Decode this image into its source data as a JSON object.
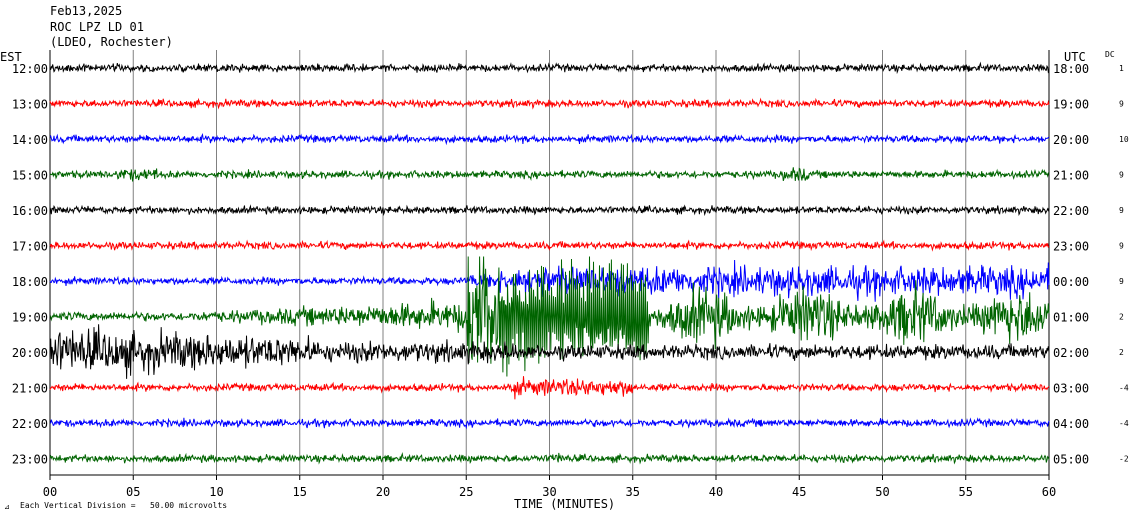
{
  "header": {
    "date": "Feb13,2025",
    "station": "ROC LPZ LD 01",
    "network": "(LDEO, Rochester)"
  },
  "axes": {
    "left_label": "EST",
    "right_label": "UTC",
    "dc_label": "DC",
    "x_label": "TIME (MINUTES)",
    "footer_note": "Each Vertical Division =   50.00 microvolts"
  },
  "colors": {
    "black": "#000000",
    "red": "#ff0000",
    "blue": "#0000ff",
    "green": "#006400",
    "grid": "#808080"
  },
  "chart_data": {
    "type": "line",
    "xlim": [
      0,
      60
    ],
    "x_ticks": [
      0,
      5,
      10,
      15,
      20,
      25,
      30,
      35,
      40,
      45,
      50,
      55,
      60
    ],
    "x_tick_labels": [
      "00",
      "05",
      "10",
      "15",
      "20",
      "25",
      "30",
      "35",
      "40",
      "45",
      "50",
      "55",
      "60"
    ],
    "rows": [
      {
        "est": "12:00",
        "utc": "18:00",
        "dc": "1",
        "color": "black"
      },
      {
        "est": "13:00",
        "utc": "19:00",
        "dc": "9",
        "color": "red"
      },
      {
        "est": "14:00",
        "utc": "20:00",
        "dc": "10",
        "color": "blue"
      },
      {
        "est": "15:00",
        "utc": "21:00",
        "dc": "9",
        "color": "green"
      },
      {
        "est": "16:00",
        "utc": "22:00",
        "dc": "9",
        "color": "black"
      },
      {
        "est": "17:00",
        "utc": "23:00",
        "dc": "9",
        "color": "red"
      },
      {
        "est": "18:00",
        "utc": "00:00",
        "dc": "9",
        "color": "blue"
      },
      {
        "est": "19:00",
        "utc": "01:00",
        "dc": "2",
        "color": "green"
      },
      {
        "est": "20:00",
        "utc": "02:00",
        "dc": "2",
        "color": "black"
      },
      {
        "est": "21:00",
        "utc": "03:00",
        "dc": "-4",
        "color": "red"
      },
      {
        "est": "22:00",
        "utc": "04:00",
        "dc": "-4",
        "color": "blue"
      },
      {
        "est": "23:00",
        "utc": "05:00",
        "dc": "-2",
        "color": "green"
      }
    ]
  }
}
